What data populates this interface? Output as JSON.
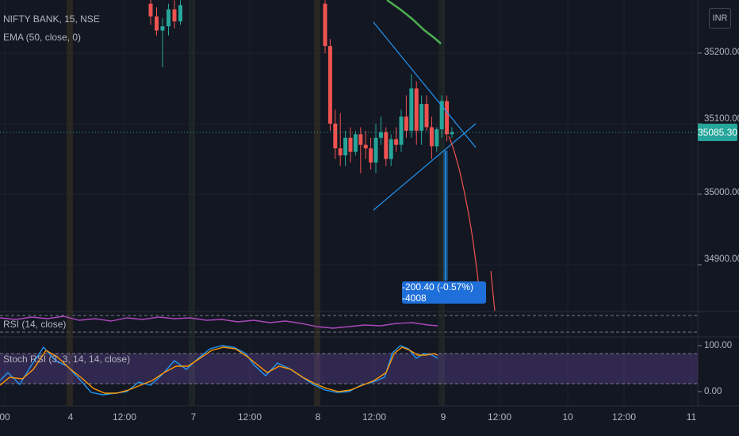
{
  "header": {
    "title": "NIFTY BANK, 15, NSE",
    "ema_label": "EMA (50, close, 0)",
    "currency": "INR"
  },
  "price_axis": {
    "labels": [
      "35200.00",
      "35100.00",
      "35000.00",
      "34900.00"
    ],
    "current_price": "35085.30"
  },
  "measure": {
    "label": "-200.40 (-0.57%) -4008"
  },
  "indicators": {
    "rsi_label": "RSI (14, close)",
    "stoch_label": "Stoch RSI (3, 3, 14, 14, close)",
    "stoch_axis": [
      "100.00",
      "0.00"
    ]
  },
  "time_axis": {
    "labels": [
      "00",
      "4",
      "12:00",
      "7",
      "12:00",
      "8",
      "12:00",
      "9",
      "12:00",
      "10",
      "12:00",
      "11"
    ]
  },
  "colors": {
    "background": "#131722",
    "up": "#26a69a",
    "down": "#ef5350",
    "ema": "#4caf50",
    "trendline": "#2196f3",
    "rsi": "#ab47bc",
    "stoch_k": "#2196f3",
    "stoch_d": "#ff9800",
    "forecast": "#ef5350"
  },
  "chart_data": {
    "type": "candlestick",
    "symbol": "NIFTY BANK",
    "interval": "15",
    "ylim": [
      34850,
      35260
    ],
    "candles": [
      {
        "i": 0,
        "o": 35270,
        "h": 35280,
        "l": 35240,
        "c": 35252
      },
      {
        "i": 1,
        "o": 35252,
        "h": 35265,
        "l": 35225,
        "c": 35232
      },
      {
        "i": 2,
        "o": 35232,
        "h": 35250,
        "l": 35180,
        "c": 35238
      },
      {
        "i": 3,
        "o": 35238,
        "h": 35270,
        "l": 35225,
        "c": 35262
      },
      {
        "i": 4,
        "o": 35262,
        "h": 35275,
        "l": 35235,
        "c": 35245
      },
      {
        "i": 5,
        "o": 35245,
        "h": 35275,
        "l": 35240,
        "c": 35268
      },
      {
        "i": 10,
        "o": 35270,
        "h": 35275,
        "l": 35200,
        "c": 35210
      },
      {
        "i": 11,
        "o": 35210,
        "h": 35220,
        "l": 35090,
        "c": 35100
      },
      {
        "i": 12,
        "o": 35100,
        "h": 35120,
        "l": 35050,
        "c": 35065
      },
      {
        "i": 13,
        "o": 35065,
        "h": 35115,
        "l": 35040,
        "c": 35055
      },
      {
        "i": 14,
        "o": 35055,
        "h": 35090,
        "l": 35040,
        "c": 35080
      },
      {
        "i": 15,
        "o": 35080,
        "h": 35095,
        "l": 35045,
        "c": 35060
      },
      {
        "i": 16,
        "o": 35060,
        "h": 35090,
        "l": 35055,
        "c": 35085
      },
      {
        "i": 17,
        "o": 35085,
        "h": 35095,
        "l": 35030,
        "c": 35070
      },
      {
        "i": 18,
        "o": 35070,
        "h": 35090,
        "l": 35050,
        "c": 35065
      },
      {
        "i": 19,
        "o": 35065,
        "h": 35080,
        "l": 35035,
        "c": 35045
      },
      {
        "i": 20,
        "o": 35045,
        "h": 35100,
        "l": 35030,
        "c": 35080
      },
      {
        "i": 21,
        "o": 35080,
        "h": 35110,
        "l": 35070,
        "c": 35088
      },
      {
        "i": 22,
        "o": 35088,
        "h": 35095,
        "l": 35040,
        "c": 35050
      },
      {
        "i": 23,
        "o": 35050,
        "h": 35085,
        "l": 35040,
        "c": 35078
      },
      {
        "i": 24,
        "o": 35078,
        "h": 35095,
        "l": 35060,
        "c": 35070
      },
      {
        "i": 25,
        "o": 35070,
        "h": 35120,
        "l": 35060,
        "c": 35110
      },
      {
        "i": 26,
        "o": 35110,
        "h": 35140,
        "l": 35080,
        "c": 35090
      },
      {
        "i": 27,
        "o": 35090,
        "h": 35170,
        "l": 35080,
        "c": 35150
      },
      {
        "i": 28,
        "o": 35150,
        "h": 35160,
        "l": 35070,
        "c": 35090
      },
      {
        "i": 29,
        "o": 35090,
        "h": 35140,
        "l": 35070,
        "c": 35128
      },
      {
        "i": 30,
        "o": 35128,
        "h": 35140,
        "l": 35090,
        "c": 35095
      },
      {
        "i": 31,
        "o": 35095,
        "h": 35110,
        "l": 35050,
        "c": 35068
      },
      {
        "i": 32,
        "o": 35068,
        "h": 35095,
        "l": 35060,
        "c": 35092
      },
      {
        "i": 33,
        "o": 35092,
        "h": 35140,
        "l": 35080,
        "c": 35132
      },
      {
        "i": 34,
        "o": 35132,
        "h": 35140,
        "l": 35075,
        "c": 35085
      },
      {
        "i": 35,
        "o": 35085,
        "h": 35095,
        "l": 35080,
        "c": 35088
      }
    ],
    "current_price": 35085.3,
    "measure_change": -200.4,
    "measure_percent": -0.57,
    "measure_ticks": -4008,
    "stoch_ylim": [
      0,
      100
    ]
  }
}
